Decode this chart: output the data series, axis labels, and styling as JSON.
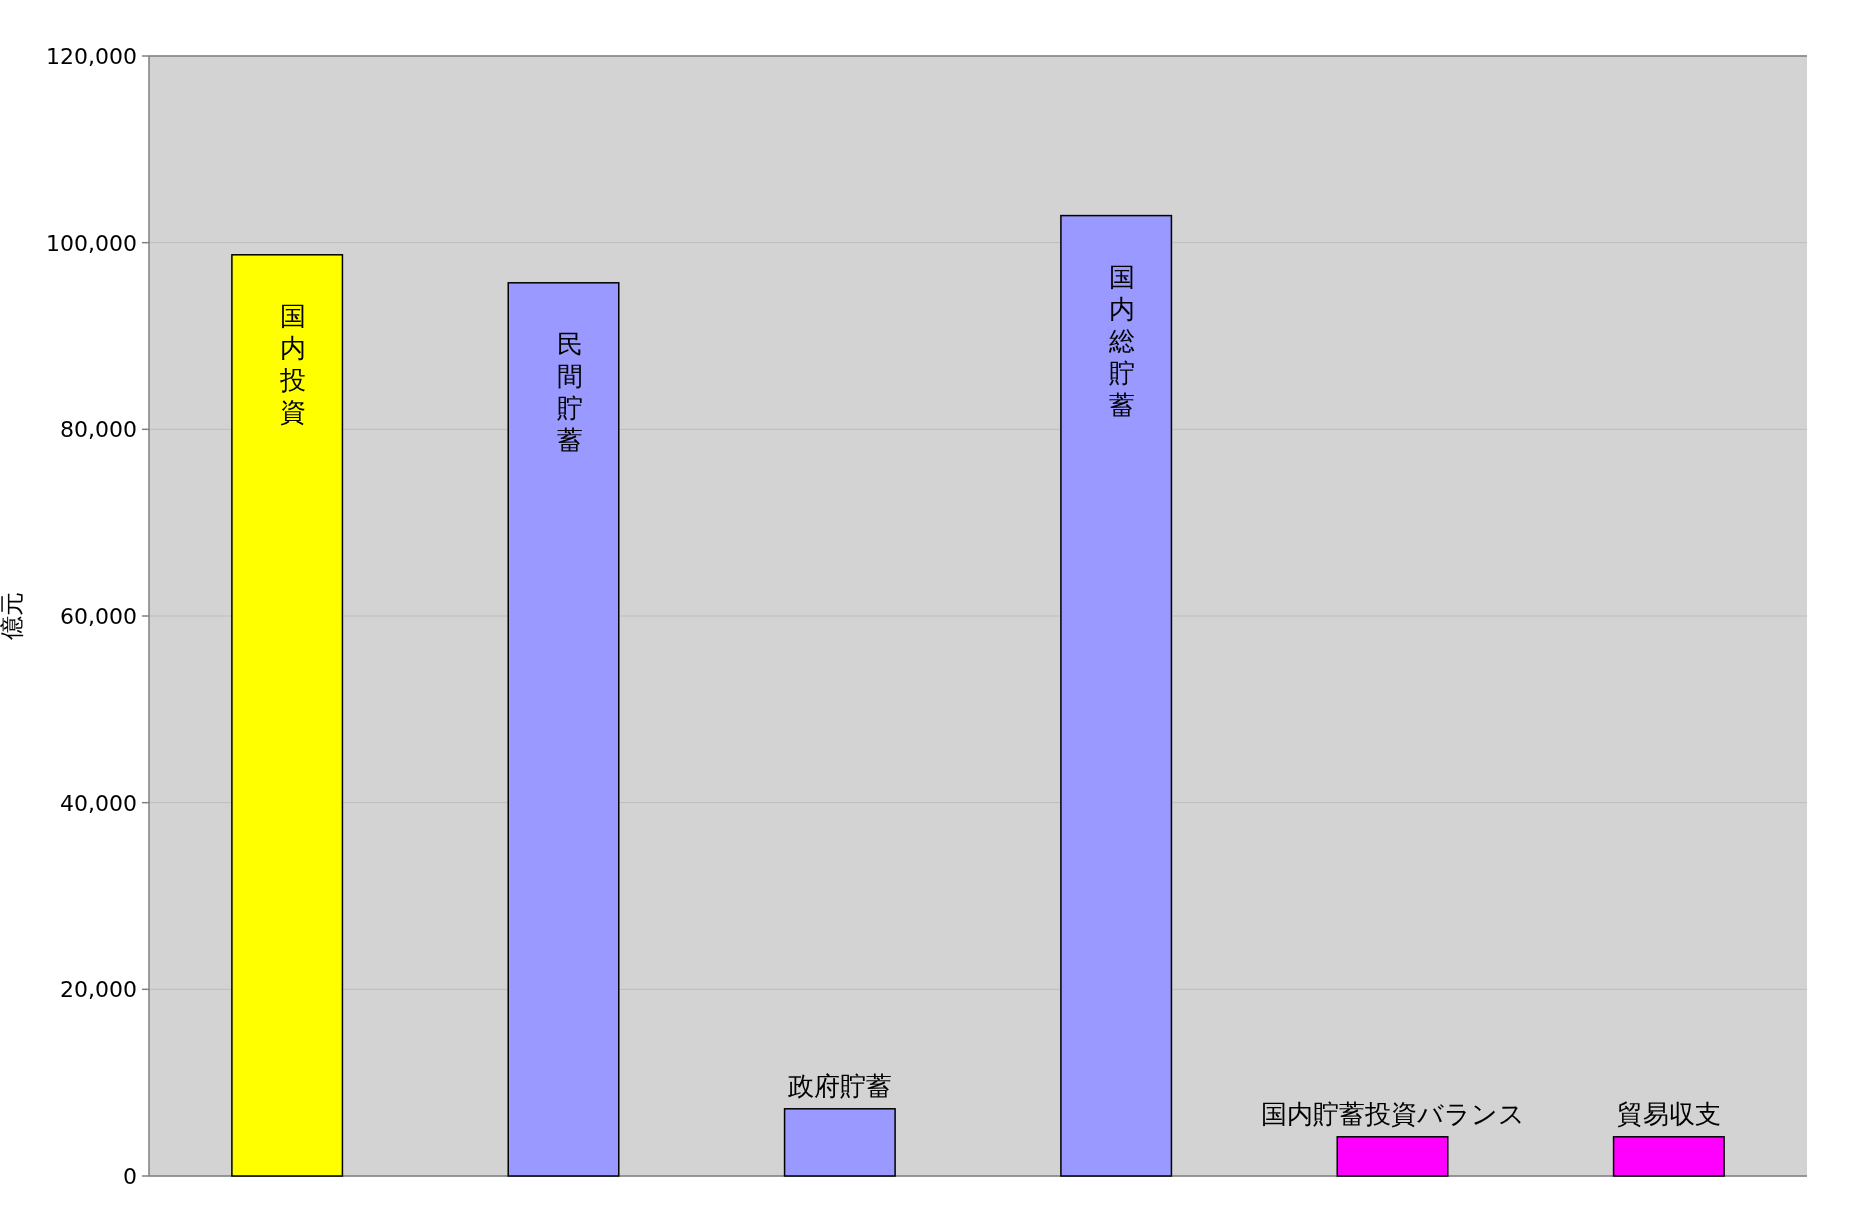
{
  "chart_data": {
    "type": "bar",
    "ylabel": "億元",
    "categories": [
      "国内投資",
      "民間貯蓄",
      "政府貯蓄",
      "国内総貯蓄",
      "国内貯蓄投資バランス",
      "貿易収支"
    ],
    "values": [
      98700,
      95700,
      7200,
      102900,
      4200,
      4200
    ],
    "colors": [
      "#ffff00",
      "#9999ff",
      "#9999ff",
      "#9999ff",
      "#ff00ff",
      "#ff00ff"
    ],
    "ylim": [
      0,
      120000
    ],
    "yticks": [
      0,
      {
        "value": 20000,
        "label": "20,000"
      },
      {
        "value": 40000,
        "label": "40,000"
      },
      {
        "value": 60000,
        "label": "60,000"
      },
      {
        "value": 80000,
        "label": "80,000"
      },
      {
        "value": 100000,
        "label": "100,000"
      },
      {
        "value": 120000,
        "label": "120,000"
      }
    ],
    "grid": "y"
  }
}
